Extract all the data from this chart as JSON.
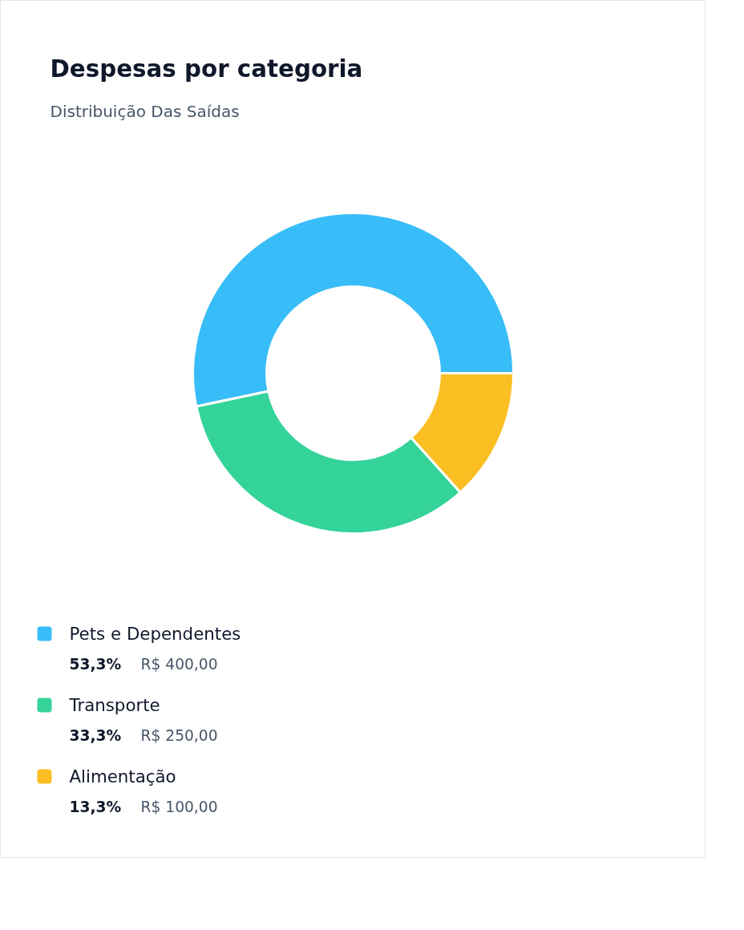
{
  "chart_data": {
    "type": "donut",
    "title": "Despesas por categoria",
    "subtitle": "Distribuição Das Saídas",
    "categories": [
      "Pets e Dependentes",
      "Transporte",
      "Alimentação"
    ],
    "values": [
      400,
      250,
      100
    ],
    "colors": [
      "#38bdf8",
      "#34d399",
      "#fbbf24"
    ],
    "value_labels": [
      "R$ 400,00",
      "R$ 250,00",
      "R$ 100,00"
    ],
    "annotations": [
      "53,3%",
      "33,3%",
      "13,3%"
    ],
    "legend": "bottom"
  }
}
